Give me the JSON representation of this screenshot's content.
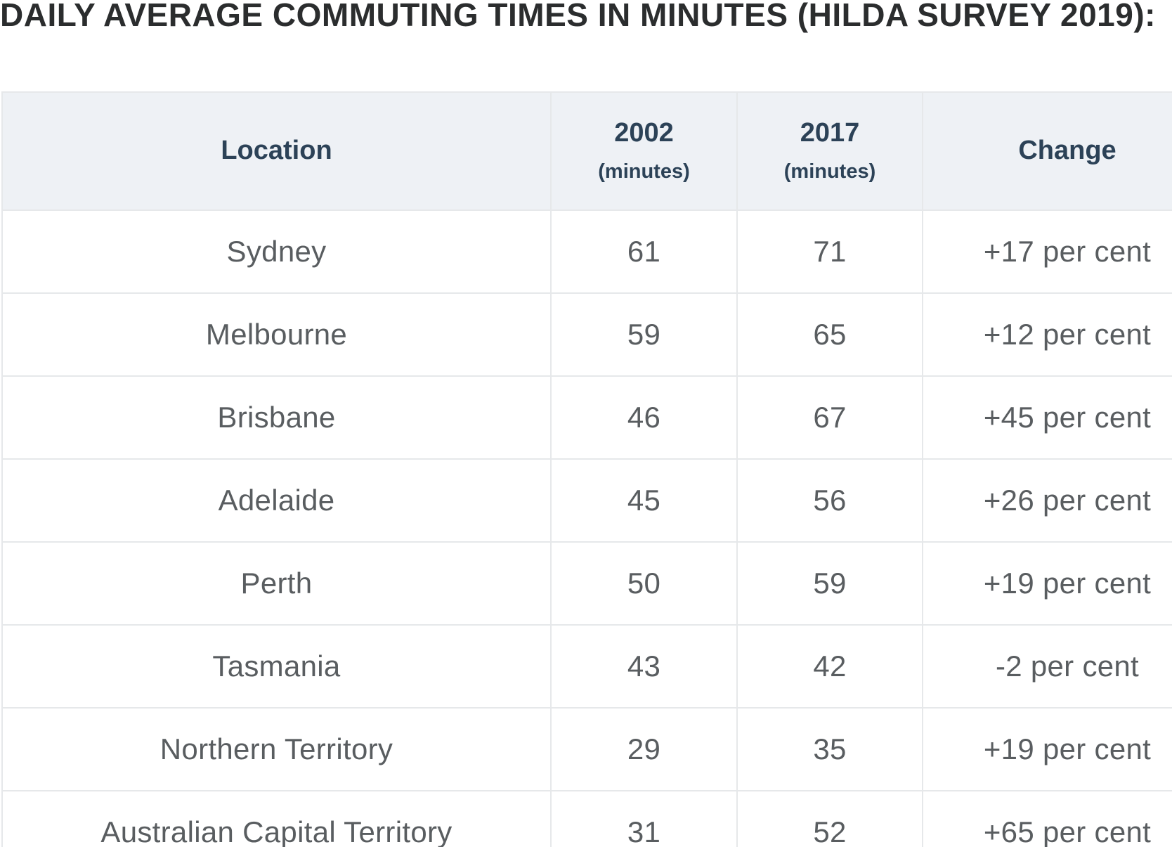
{
  "page": {
    "title": "DAILY AVERAGE COMMUTING TIMES IN MINUTES (HILDA SURVEY 2019):"
  },
  "table": {
    "columns": [
      {
        "label": "Location",
        "sublabel": ""
      },
      {
        "label": "2002",
        "sublabel": "(minutes)"
      },
      {
        "label": "2017",
        "sublabel": "(minutes)"
      },
      {
        "label": "Change",
        "sublabel": ""
      }
    ],
    "rows": [
      {
        "location": "Sydney",
        "y2002": "61",
        "y2017": "71",
        "change": "+17 per cent"
      },
      {
        "location": "Melbourne",
        "y2002": "59",
        "y2017": "65",
        "change": "+12 per cent"
      },
      {
        "location": "Brisbane",
        "y2002": "46",
        "y2017": "67",
        "change": "+45 per cent"
      },
      {
        "location": "Adelaide",
        "y2002": "45",
        "y2017": "56",
        "change": "+26 per cent"
      },
      {
        "location": "Perth",
        "y2002": "50",
        "y2017": "59",
        "change": "+19 per cent"
      },
      {
        "location": "Tasmania",
        "y2002": "43",
        "y2017": "42",
        "change": "-2 per cent"
      },
      {
        "location": "Northern Territory",
        "y2002": "29",
        "y2017": "35",
        "change": "+19 per cent"
      },
      {
        "location": "Australian Capital Territory",
        "y2002": "31",
        "y2017": "52",
        "change": "+65 per cent"
      }
    ]
  },
  "chart_data": {
    "type": "table",
    "title": "DAILY AVERAGE COMMUTING TIMES IN MINUTES (HILDA SURVEY 2019):",
    "columns": [
      "Location",
      "2002 (minutes)",
      "2017 (minutes)",
      "Change"
    ],
    "rows": [
      [
        "Sydney",
        61,
        71,
        "+17 per cent"
      ],
      [
        "Melbourne",
        59,
        65,
        "+12 per cent"
      ],
      [
        "Brisbane",
        46,
        67,
        "+45 per cent"
      ],
      [
        "Adelaide",
        45,
        56,
        "+26 per cent"
      ],
      [
        "Perth",
        50,
        59,
        "+19 per cent"
      ],
      [
        "Tasmania",
        43,
        42,
        "-2 per cent"
      ],
      [
        "Northern Territory",
        29,
        35,
        "+19 per cent"
      ],
      [
        "Australian Capital Territory",
        31,
        52,
        "+65 per cent"
      ]
    ]
  },
  "colors": {
    "header_bg": "#eef1f5",
    "header_text": "#2c4257",
    "body_text": "#595d60",
    "border": "#e6e8ea",
    "title_text": "#2b2d2e",
    "page_bg": "#ffffff"
  }
}
